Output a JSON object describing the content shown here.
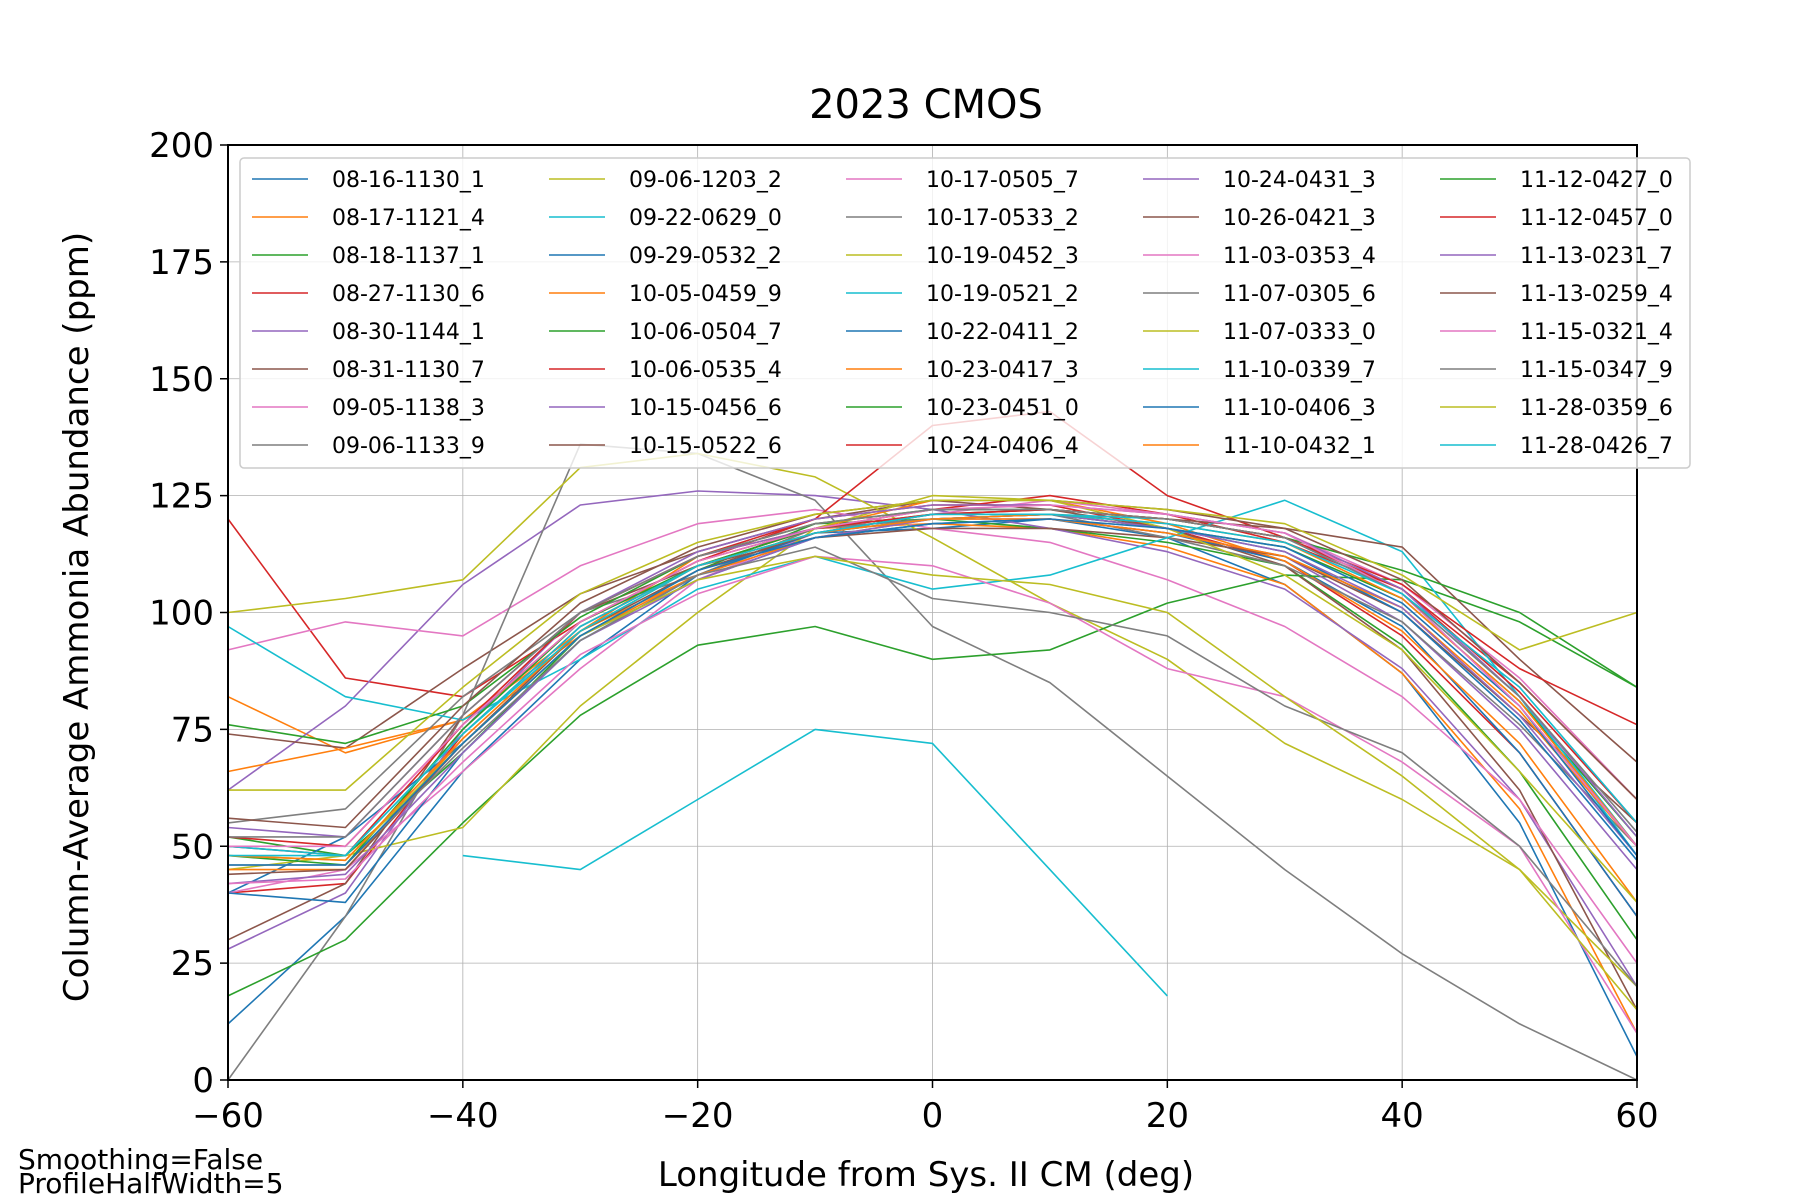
{
  "chart_data": {
    "type": "line",
    "title": "2023 CMOS",
    "xlabel": "Longitude from Sys. II CM (deg)",
    "ylabel": "Column-Average Ammonia Abundance (ppm)",
    "xlim": [
      -60,
      60
    ],
    "ylim": [
      0,
      200
    ],
    "xticks": [
      -60,
      -40,
      -20,
      0,
      20,
      40,
      60
    ],
    "yticks": [
      0,
      25,
      50,
      75,
      100,
      125,
      150,
      175,
      200
    ],
    "grid": true,
    "legend_placement": "upper right",
    "legend_columns": 5,
    "x": [
      -60,
      -50,
      -40,
      -30,
      -20,
      -10,
      0,
      10,
      20,
      30,
      40,
      50,
      60
    ],
    "series": [
      {
        "name": "08-16-1130_1",
        "values": [
          12,
          35,
          66,
          90,
          108,
          117,
          118,
          120,
          116,
          106,
          87,
          55,
          5
        ]
      },
      {
        "name": "08-17-1121_4",
        "values": [
          82,
          70,
          77,
          95,
          108,
          118,
          119,
          118,
          114,
          106,
          87,
          58,
          10
        ]
      },
      {
        "name": "08-18-1137_1",
        "values": [
          52,
          48,
          70,
          95,
          109,
          119,
          120,
          118,
          115,
          110,
          93,
          66,
          30
        ]
      },
      {
        "name": "08-27-1130_6",
        "values": [
          120,
          86,
          82,
          98,
          111,
          120,
          123,
          123,
          118,
          111,
          95,
          70,
          35
        ]
      },
      {
        "name": "08-30-1144_1",
        "values": [
          62,
          80,
          106,
          123,
          126,
          125,
          122,
          118,
          113,
          105,
          88,
          60,
          20
        ]
      },
      {
        "name": "08-31-1130_7",
        "values": [
          74,
          71,
          88,
          104,
          113,
          120,
          124,
          122,
          118,
          110,
          92,
          62,
          15
        ]
      },
      {
        "name": "09-05-1138_3",
        "values": [
          92,
          98,
          95,
          110,
          119,
          122,
          118,
          115,
          107,
          97,
          82,
          60,
          25
        ]
      },
      {
        "name": "09-06-1133_9",
        "values": [
          0,
          35,
          78,
          136,
          134,
          124,
          97,
          85,
          65,
          45,
          27,
          12,
          0
        ]
      },
      {
        "name": "09-06-1203_2",
        "values": [
          100,
          103,
          107,
          131,
          134,
          129,
          116,
          102,
          90,
          72,
          60,
          45,
          20
        ]
      },
      {
        "name": "09-22-0629_0",
        "values": [
          null,
          null,
          48,
          45,
          60,
          75,
          72,
          45,
          18,
          null,
          null,
          null,
          null
        ]
      },
      {
        "name": "09-29-0532_2",
        "values": [
          40,
          52,
          72,
          95,
          107,
          116,
          119,
          120,
          117,
          111,
          97,
          70,
          35
        ]
      },
      {
        "name": "10-05-0459_9",
        "values": [
          66,
          71,
          77,
          96,
          112,
          118,
          124,
          124,
          119,
          111,
          96,
          72,
          38
        ]
      },
      {
        "name": "10-06-0504_7",
        "values": [
          18,
          30,
          55,
          78,
          93,
          97,
          90,
          92,
          102,
          108,
          107,
          98,
          84
        ]
      },
      {
        "name": "10-06-0535_4",
        "values": [
          40,
          42,
          74,
          97,
          110,
          118,
          122,
          125,
          121,
          115,
          105,
          85,
          60
        ]
      },
      {
        "name": "10-15-0456_6",
        "values": [
          28,
          40,
          75,
          100,
          112,
          118,
          120,
          120,
          117,
          112,
          98,
          75,
          45
        ]
      },
      {
        "name": "10-15-0522_6",
        "values": [
          30,
          42,
          78,
          100,
          110,
          116,
          118,
          118,
          116,
          112,
          100,
          78,
          55
        ]
      },
      {
        "name": "10-17-0505_7",
        "values": [
          40,
          45,
          66,
          88,
          107,
          117,
          121,
          124,
          121,
          117,
          106,
          86,
          60
        ]
      },
      {
        "name": "10-17-0533_2",
        "values": [
          55,
          58,
          82,
          100,
          108,
          118,
          120,
          121,
          116,
          110,
          98,
          76,
          50
        ]
      },
      {
        "name": "10-19-0452_3",
        "values": [
          45,
          48,
          54,
          80,
          100,
          118,
          125,
          124,
          118,
          108,
          92,
          66,
          38
        ]
      },
      {
        "name": "10-19-0521_2",
        "values": [
          97,
          82,
          77,
          90,
          105,
          112,
          105,
          108,
          116,
          124,
          113,
          82,
          48
        ]
      },
      {
        "name": "10-22-0411_2",
        "values": [
          40,
          38,
          70,
          94,
          108,
          117,
          120,
          121,
          118,
          113,
          100,
          77,
          47
        ]
      },
      {
        "name": "10-23-0417_3",
        "values": [
          45,
          45,
          73,
          96,
          108,
          116,
          120,
          120,
          117,
          112,
          101,
          79,
          50
        ]
      },
      {
        "name": "10-23-0451_0",
        "values": [
          48,
          46,
          75,
          98,
          110,
          118,
          121,
          121,
          118,
          114,
          103,
          81,
          52
        ]
      },
      {
        "name": "10-24-0406_4",
        "values": [
          50,
          48,
          76,
          100,
          112,
          120,
          140,
          143,
          125,
          116,
          105,
          83,
          55
        ]
      },
      {
        "name": "10-24-0431_3",
        "values": [
          42,
          44,
          70,
          94,
          107,
          116,
          120,
          121,
          118,
          113,
          101,
          78,
          48
        ]
      },
      {
        "name": "10-26-0421_3",
        "values": [
          44,
          45,
          72,
          96,
          109,
          117,
          121,
          122,
          120,
          118,
          114,
          90,
          68
        ]
      },
      {
        "name": "11-03-0353_4",
        "values": [
          42,
          43,
          68,
          91,
          104,
          112,
          110,
          102,
          88,
          82,
          68,
          50,
          10
        ]
      },
      {
        "name": "11-07-0305_6",
        "values": [
          46,
          46,
          71,
          94,
          108,
          114,
          103,
          100,
          95,
          80,
          70,
          50,
          20
        ]
      },
      {
        "name": "11-07-0333_0",
        "values": [
          48,
          47,
          72,
          95,
          107,
          112,
          108,
          106,
          100,
          82,
          65,
          45,
          15
        ]
      },
      {
        "name": "11-10-0339_7",
        "values": [
          50,
          48,
          74,
          97,
          110,
          117,
          120,
          121,
          120,
          116,
          104,
          82,
          50
        ]
      },
      {
        "name": "11-10-0406_3",
        "values": [
          46,
          46,
          72,
          95,
          109,
          116,
          119,
          120,
          118,
          114,
          102,
          80,
          48
        ]
      },
      {
        "name": "11-10-0432_1",
        "values": [
          48,
          47,
          73,
          96,
          110,
          117,
          120,
          121,
          119,
          115,
          103,
          81,
          50
        ]
      },
      {
        "name": "11-12-0427_0",
        "values": [
          76,
          72,
          80,
          99,
          112,
          119,
          122,
          122,
          120,
          116,
          109,
          100,
          84
        ]
      },
      {
        "name": "11-12-0457_0",
        "values": [
          52,
          50,
          76,
          98,
          111,
          118,
          121,
          122,
          120,
          116,
          106,
          88,
          76
        ]
      },
      {
        "name": "11-13-0231_7",
        "values": [
          54,
          52,
          78,
          100,
          113,
          120,
          123,
          123,
          121,
          117,
          105,
          82,
          52
        ]
      },
      {
        "name": "11-13-0259_4",
        "values": [
          56,
          54,
          80,
          102,
          114,
          121,
          124,
          124,
          122,
          118,
          107,
          85,
          60
        ]
      },
      {
        "name": "11-15-0321_4",
        "values": [
          50,
          50,
          76,
          98,
          111,
          118,
          122,
          123,
          121,
          117,
          104,
          80,
          50
        ]
      },
      {
        "name": "11-15-0347_9",
        "values": [
          52,
          52,
          78,
          100,
          112,
          119,
          122,
          122,
          120,
          116,
          104,
          82,
          53
        ]
      },
      {
        "name": "11-28-0359_6",
        "values": [
          62,
          62,
          84,
          104,
          115,
          121,
          124,
          124,
          122,
          119,
          108,
          92,
          100
        ]
      },
      {
        "name": "11-28-0426_7",
        "values": [
          48,
          48,
          74,
          96,
          110,
          117,
          121,
          121,
          119,
          115,
          104,
          84,
          55
        ]
      }
    ]
  },
  "footnotes": [
    "Smoothing=False",
    "ProfileHalfWidth=5"
  ],
  "colors": [
    "#1f77b4",
    "#ff7f0e",
    "#2ca02c",
    "#d62728",
    "#9467bd",
    "#8c564b",
    "#e377c2",
    "#7f7f7f",
    "#bcbd22",
    "#17becf"
  ]
}
